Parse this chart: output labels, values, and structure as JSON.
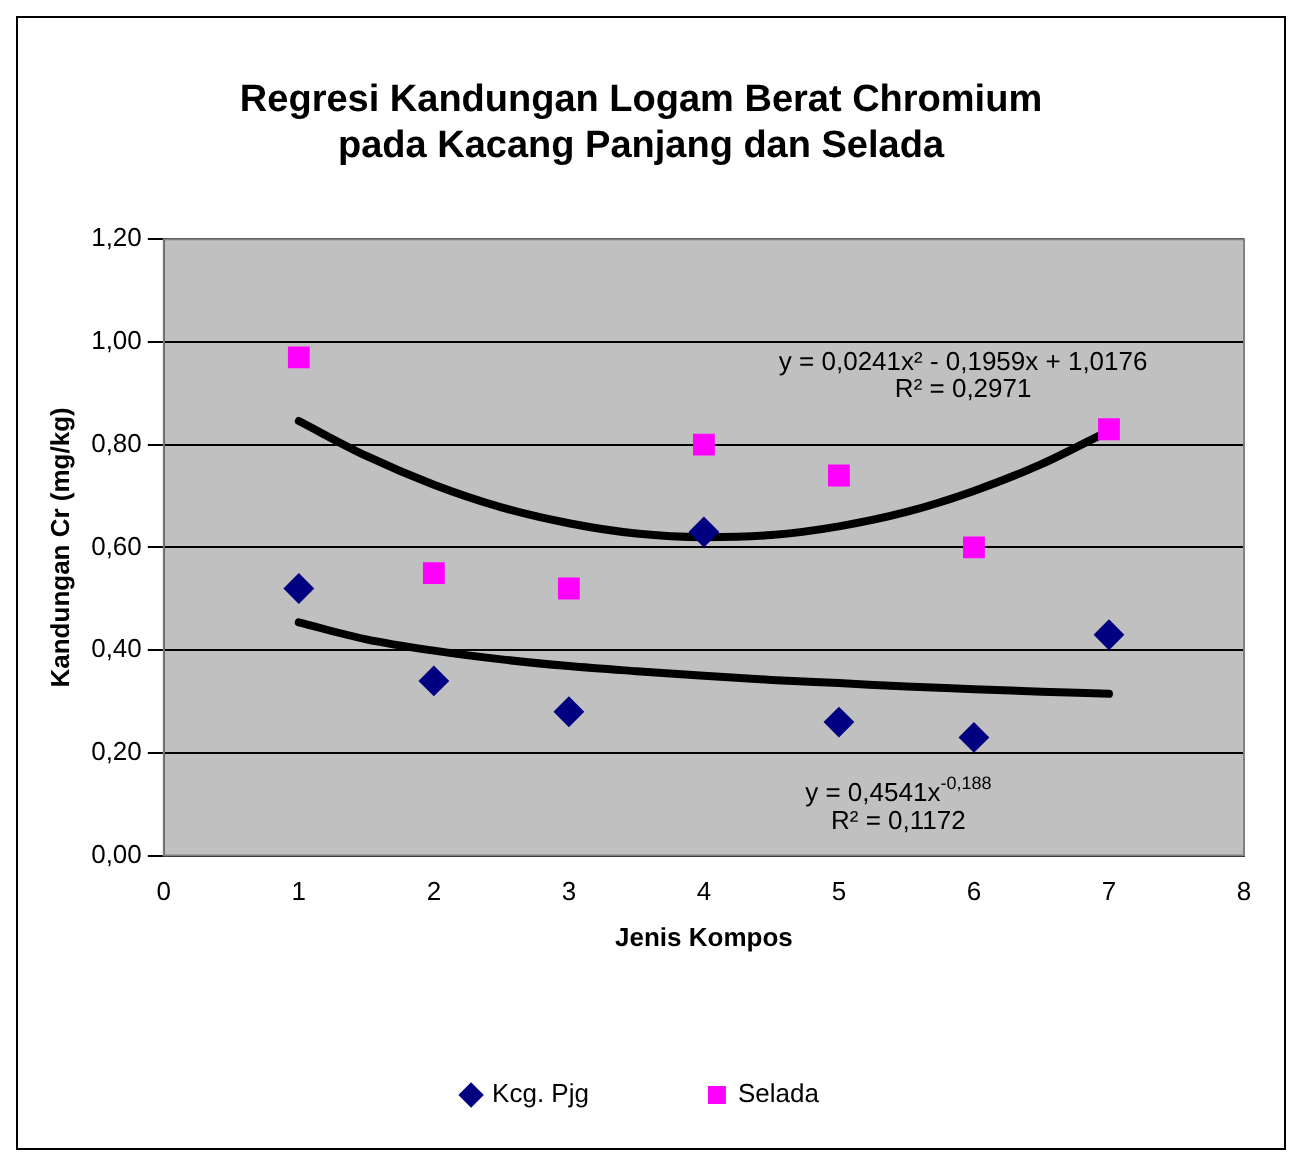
{
  "chart_data": {
    "type": "scatter",
    "title": "Regresi Kandungan Logam Berat Chromium\npada Kacang Panjang dan Selada",
    "xlabel": "Jenis Kompos",
    "ylabel": "Kandungan Cr (mg/kg)",
    "xlim": [
      0,
      8
    ],
    "xticks": [
      0,
      1,
      2,
      3,
      4,
      5,
      6,
      7,
      8
    ],
    "ylim": [
      0,
      1.2
    ],
    "yticks": [
      {
        "value": 0,
        "label": "0,00"
      },
      {
        "value": 0.2,
        "label": "0,20"
      },
      {
        "value": 0.4,
        "label": "0,40"
      },
      {
        "value": 0.6,
        "label": "0,60"
      },
      {
        "value": 0.8,
        "label": "0,80"
      },
      {
        "value": 1.0,
        "label": "1,00"
      },
      {
        "value": 1.2,
        "label": "1,20"
      }
    ],
    "grid": "y",
    "legend": "bottom",
    "series": [
      {
        "name": "Kcg. Pjg",
        "color": "#000080",
        "marker": "diamond",
        "x": [
          1,
          2,
          3,
          4,
          5,
          6,
          7
        ],
        "values": [
          0.52,
          0.34,
          0.28,
          0.63,
          0.26,
          0.23,
          0.43
        ]
      },
      {
        "name": "Selada",
        "color": "#ff00ff",
        "marker": "square",
        "x": [
          1,
          2,
          3,
          4,
          5,
          6,
          7
        ],
        "values": [
          0.97,
          0.55,
          0.52,
          0.8,
          0.74,
          0.6,
          0.83
        ]
      },
      {
        "type": "line",
        "color": "#000000",
        "marker": "none",
        "x": [
          1,
          1.5,
          2,
          2.5,
          3,
          3.5,
          4,
          4.5,
          5,
          5.5,
          6,
          6.5,
          7
        ],
        "values": [
          0.846,
          0.778,
          0.722,
          0.678,
          0.647,
          0.627,
          0.62,
          0.624,
          0.641,
          0.669,
          0.71,
          0.762,
          0.827
        ]
      },
      {
        "type": "line",
        "color": "#000000",
        "marker": "none",
        "x": [
          1,
          1.5,
          2,
          2.5,
          3,
          3.5,
          4,
          4.5,
          5,
          5.5,
          6,
          6.5,
          7
        ],
        "values": [
          0.454,
          0.421,
          0.399,
          0.382,
          0.369,
          0.359,
          0.35,
          0.342,
          0.336,
          0.329,
          0.324,
          0.319,
          0.315
        ]
      }
    ],
    "annotations": [
      "y = 0,0241x² - 0,1959x + 1,0176",
      "R² = 0,2971",
      "y = 0,4541x$^{-0,188}$",
      "R² = 0,1172"
    ]
  }
}
